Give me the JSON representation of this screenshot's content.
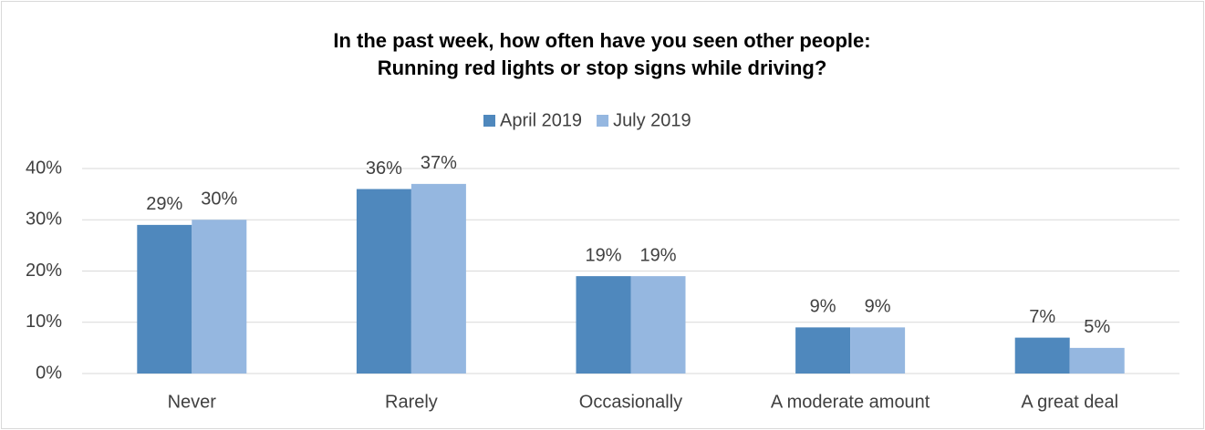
{
  "chart_data": {
    "type": "bar",
    "title": [
      "In the past week, how often have you seen other people:",
      "Running red lights or stop signs while driving?"
    ],
    "categories": [
      "Never",
      "Rarely",
      "Occasionally",
      "A moderate amount",
      "A great deal"
    ],
    "series": [
      {
        "name": "April 2019",
        "color": "#4f88bd",
        "values": [
          29,
          36,
          19,
          9,
          7
        ],
        "value_labels": [
          "29%",
          "36%",
          "19%",
          "9%",
          "7%"
        ]
      },
      {
        "name": "July 2019",
        "color": "#95b7e0",
        "values": [
          30,
          37,
          19,
          9,
          5
        ],
        "value_labels": [
          "30%",
          "37%",
          "19%",
          "9%",
          "5%"
        ]
      }
    ],
    "ylim": [
      0,
      40
    ],
    "yticks": [
      {
        "value": 0,
        "label": "0%"
      },
      {
        "value": 10,
        "label": "10%"
      },
      {
        "value": 20,
        "label": "20%"
      },
      {
        "value": 30,
        "label": "30%"
      },
      {
        "value": 40,
        "label": "40%"
      }
    ],
    "grid": true,
    "legend": "top"
  }
}
